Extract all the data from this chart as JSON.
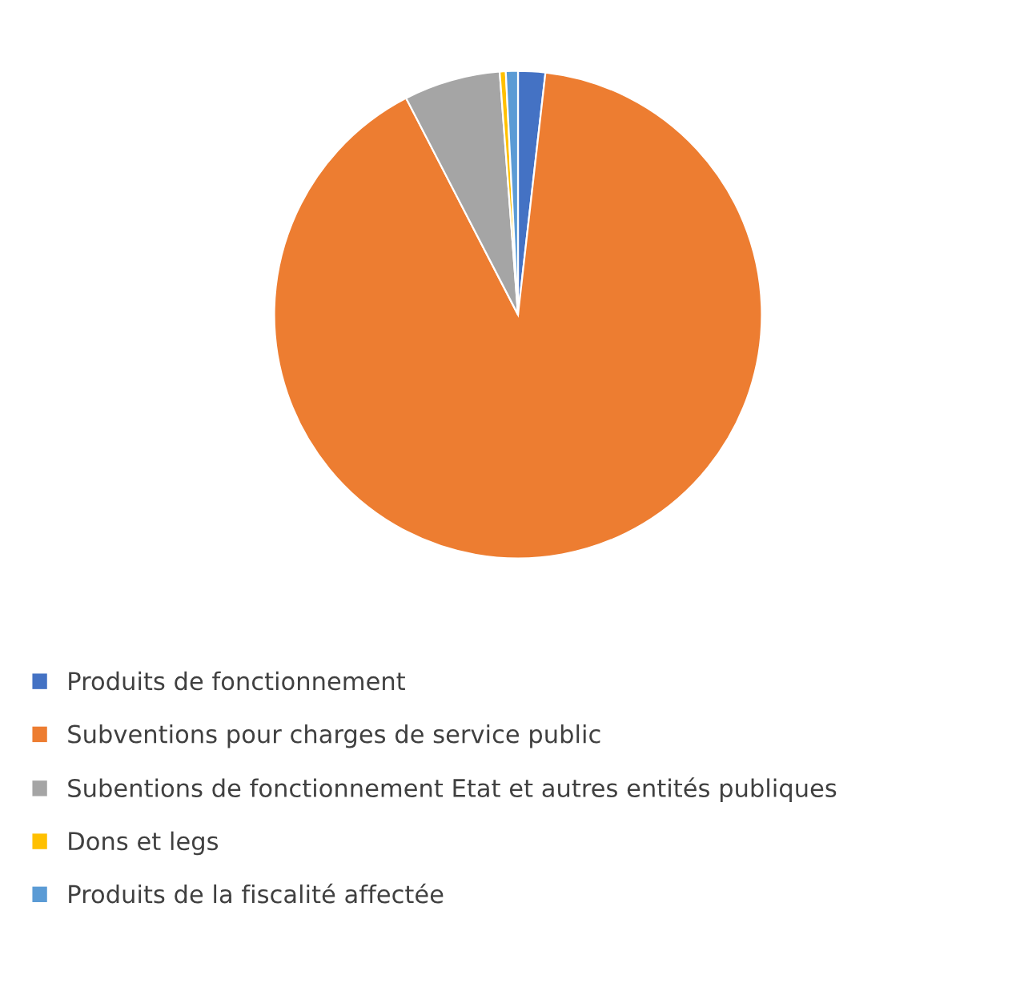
{
  "chart_data": {
    "type": "pie",
    "categories": [
      "Produits de fonctionnement",
      "Subventions pour charges de service public",
      "Subentions de fonctionnement Etat et autres entités publiques",
      "Dons et legs",
      "Produits de la fiscalité affectée"
    ],
    "values": [
      1.8,
      90.7,
      6.4,
      0.4,
      0.8
    ],
    "colors": [
      "#4472c4",
      "#ed7d31",
      "#a5a5a5",
      "#ffc000",
      "#5b9bd5"
    ],
    "legend": "bottom"
  }
}
